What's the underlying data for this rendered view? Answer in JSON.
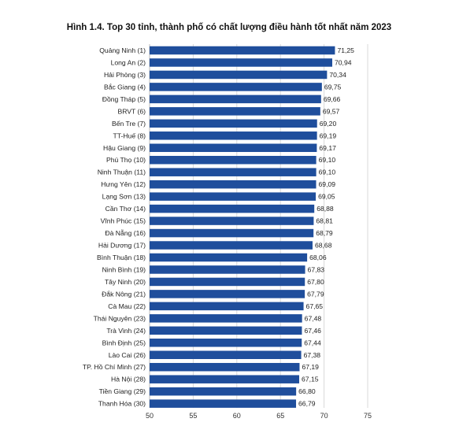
{
  "chart_data": {
    "type": "bar",
    "orientation": "horizontal",
    "title": "Hình 1.4. Top 30 tỉnh, thành phố có chất lượng điều hành tốt nhất năm 2023",
    "categories": [
      "Quảng Ninh (1)",
      "Long An (2)",
      "Hải Phòng (3)",
      "Bắc Giang (4)",
      "Đồng Tháp (5)",
      "BRVT (6)",
      "Bến Tre (7)",
      "TT-Huế (8)",
      "Hậu Giang (9)",
      "Phú Thọ (10)",
      "Ninh Thuận (11)",
      "Hưng Yên (12)",
      "Lạng Sơn (13)",
      "Cần Thơ (14)",
      "Vĩnh Phúc (15)",
      "Đà Nẵng (16)",
      "Hải Dương (17)",
      "Bình Thuận (18)",
      "Ninh Bình (19)",
      "Tây Ninh (20)",
      "Đắk Nông (21)",
      "Cà Mau (22)",
      "Thái Nguyên (23)",
      "Trà Vinh (24)",
      "Bình Định (25)",
      "Lào Cai (26)",
      "TP. Hồ Chí Minh (27)",
      "Hà Nội (28)",
      "Tiền Giang (29)",
      "Thanh Hóa (30)"
    ],
    "values": [
      71.25,
      70.94,
      70.34,
      69.75,
      69.66,
      69.57,
      69.2,
      69.19,
      69.17,
      69.1,
      69.1,
      69.09,
      69.05,
      68.88,
      68.81,
      68.79,
      68.68,
      68.06,
      67.83,
      67.8,
      67.79,
      67.65,
      67.48,
      67.46,
      67.44,
      67.38,
      67.19,
      67.15,
      66.8,
      66.79
    ],
    "value_labels": [
      "71,25",
      "70,94",
      "70,34",
      "69,75",
      "69,66",
      "69,57",
      "69,20",
      "69,19",
      "69,17",
      "69,10",
      "69,10",
      "69,09",
      "69,05",
      "68,88",
      "68,81",
      "68,79",
      "68,68",
      "68,06",
      "67,83",
      "67,80",
      "67,79",
      "67,65",
      "67,48",
      "67,46",
      "67,44",
      "67,38",
      "67,19",
      "67,15",
      "66,80",
      "66,79"
    ],
    "xlim": [
      50,
      75
    ],
    "xticks": [
      50,
      55,
      60,
      65,
      70,
      75
    ],
    "xlabel": "",
    "ylabel": "",
    "grid": "vertical",
    "legend": "none",
    "bar_color": "#1f4e9c"
  }
}
